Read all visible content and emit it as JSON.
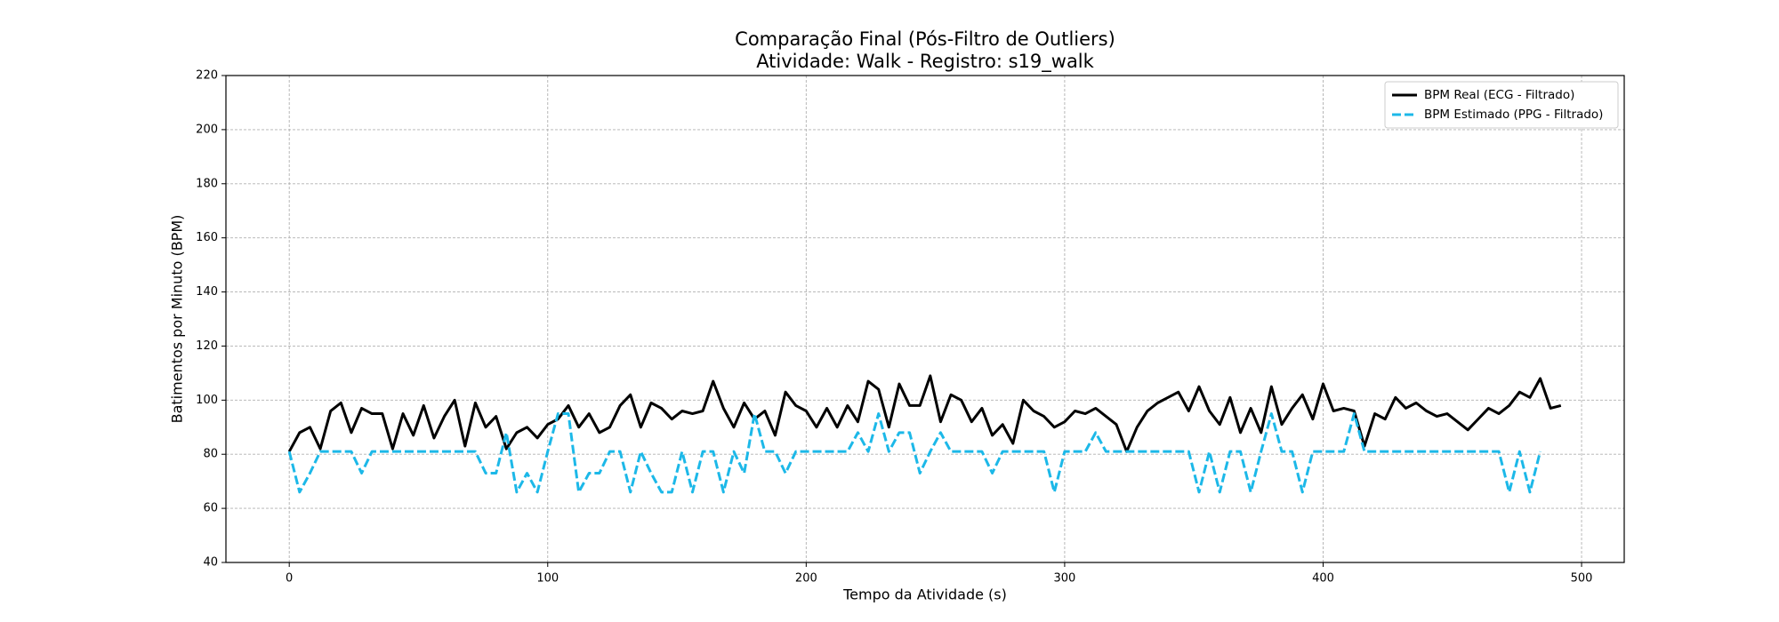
{
  "chart_data": {
    "type": "line",
    "title": "Comparação Final (Pós-Filtro de Outliers)",
    "subtitle": "Atividade: Walk - Registro: s19_walk",
    "x_label": "Tempo da Atividade (s)",
    "y_label": "Batimentos por Minuto (BPM)",
    "x": [
      0,
      4,
      8,
      12,
      16,
      20,
      24,
      28,
      32,
      36,
      40,
      44,
      48,
      52,
      56,
      60,
      64,
      68,
      72,
      76,
      80,
      84,
      88,
      92,
      96,
      100,
      104,
      108,
      112,
      116,
      120,
      124,
      128,
      132,
      136,
      140,
      144,
      148,
      152,
      156,
      160,
      164,
      168,
      172,
      176,
      180,
      184,
      188,
      192,
      196,
      200,
      204,
      208,
      212,
      216,
      220,
      224,
      228,
      232,
      236,
      240,
      244,
      248,
      252,
      256,
      260,
      264,
      268,
      272,
      276,
      280,
      284,
      288,
      292,
      296,
      300,
      304,
      308,
      312,
      316,
      320,
      324,
      328,
      332,
      336,
      340,
      344,
      348,
      352,
      356,
      360,
      364,
      368,
      372,
      376,
      380,
      384,
      388,
      392,
      396,
      400,
      404,
      408,
      412,
      416,
      420,
      424,
      428,
      432,
      436,
      440,
      444,
      448,
      452,
      456,
      460,
      464,
      468,
      472,
      476,
      480,
      484,
      488,
      492
    ],
    "series": [
      {
        "name": "BPM Real (ECG - Filtrado)",
        "color": "#000000",
        "dashed": false,
        "values": [
          81,
          88,
          90,
          82,
          96,
          99,
          88,
          97,
          95,
          95,
          82,
          95,
          87,
          98,
          86,
          94,
          100,
          83,
          99,
          90,
          94,
          82,
          88,
          90,
          86,
          91,
          93,
          98,
          90,
          95,
          88,
          90,
          98,
          102,
          90,
          99,
          97,
          93,
          96,
          95,
          96,
          107,
          97,
          90,
          99,
          93,
          96,
          87,
          103,
          98,
          96,
          90,
          97,
          90,
          98,
          92,
          107,
          104,
          90,
          106,
          98,
          98,
          109,
          92,
          102,
          100,
          92,
          97,
          87,
          91,
          84,
          100,
          96,
          94,
          90,
          92,
          96,
          95,
          97,
          94,
          91,
          81,
          90,
          96,
          99,
          101,
          103,
          96,
          105,
          96,
          91,
          101,
          88,
          97,
          88,
          105,
          91,
          97,
          102,
          93,
          106,
          96,
          97,
          96,
          83,
          95,
          93,
          101,
          97,
          99,
          96,
          94,
          95,
          92,
          89,
          93,
          97,
          95,
          98,
          103,
          101,
          108,
          97,
          98
        ]
      },
      {
        "name": "BPM Estimado (PPG - Filtrado)",
        "color": "#1cb8e8",
        "dashed": true,
        "values": [
          81,
          66,
          73,
          81,
          81,
          81,
          81,
          73,
          81,
          81,
          81,
          81,
          81,
          81,
          81,
          81,
          81,
          81,
          81,
          73,
          73,
          88,
          66,
          73,
          66,
          81,
          95,
          95,
          66,
          73,
          73,
          81,
          81,
          66,
          81,
          73,
          66,
          66,
          81,
          66,
          81,
          81,
          66,
          81,
          73,
          95,
          81,
          81,
          73,
          81,
          81,
          81,
          81,
          81,
          81,
          88,
          81,
          95,
          81,
          88,
          88,
          73,
          81,
          88,
          81,
          81,
          81,
          81,
          73,
          81,
          81,
          81,
          81,
          81,
          66,
          81,
          81,
          81,
          88,
          81,
          81,
          81,
          81,
          81,
          81,
          81,
          81,
          81,
          66,
          81,
          66,
          81,
          81,
          66,
          81,
          95,
          81,
          81,
          66,
          81,
          81,
          81,
          81,
          95,
          81,
          81,
          81,
          81,
          81,
          81,
          81,
          81,
          81,
          81,
          81,
          81,
          81,
          81,
          66,
          81,
          66,
          81,
          null,
          null
        ]
      }
    ],
    "xlim": [
      -24.5,
      516.5
    ],
    "ylim": [
      40,
      220
    ],
    "xticks": [
      0,
      100,
      200,
      300,
      400,
      500
    ],
    "yticks": [
      40,
      60,
      80,
      100,
      120,
      140,
      160,
      180,
      200,
      220
    ],
    "grid": true,
    "legend": "upper right"
  }
}
